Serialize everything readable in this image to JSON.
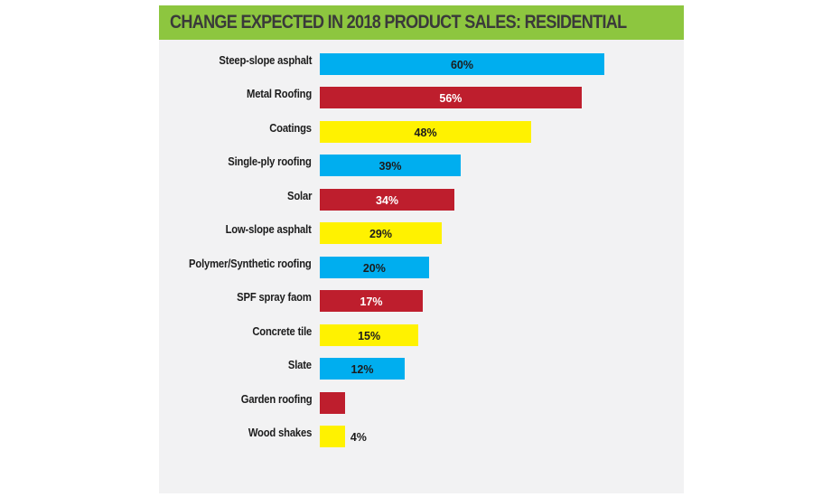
{
  "chart_data": {
    "type": "bar",
    "orientation": "horizontal",
    "title": "CHANGE EXPECTED IN 2018 PRODUCT SALES: RESIDENTIAL",
    "xlabel": "",
    "ylabel": "",
    "grid": false,
    "legend": null,
    "value_unit": "%",
    "categories": [
      "Steep-slope asphalt",
      "Metal Roofing",
      "Coatings",
      "Single-ply roofing",
      "Solar",
      "Low-slope asphalt",
      "Polymer/Synthetic roofing",
      "SPF spray faom",
      "Concrete tile",
      "Slate",
      "Garden roofing",
      "Wood shakes"
    ],
    "values": [
      60,
      56,
      48,
      39,
      34,
      29,
      20,
      17,
      15,
      12,
      null,
      4
    ],
    "value_labels": [
      "60%",
      "56%",
      "48%",
      "39%",
      "34%",
      "29%",
      "20%",
      "17%",
      "15%",
      "12%",
      "",
      "4%"
    ],
    "drawn_bar_lengths": [
      60,
      55.2,
      44.6,
      29.7,
      28.4,
      25.7,
      23,
      21.7,
      20.8,
      17.9,
      5.3,
      5.3
    ],
    "colors": [
      "#00aeef",
      "#be1e2d",
      "#fff200",
      "#00aeef",
      "#be1e2d",
      "#fff200",
      "#00aeef",
      "#be1e2d",
      "#fff200",
      "#00aeef",
      "#be1e2d",
      "#fff200"
    ],
    "label_colors": [
      "#1c1c1c",
      "#ffffff",
      "#1c1c1c",
      "#1c1c1c",
      "#ffffff",
      "#1c1c1c",
      "#1c1c1c",
      "#ffffff",
      "#1c1c1c",
      "#1c1c1c",
      "#ffffff",
      "#1c1c1c"
    ],
    "xlim": [
      0,
      60
    ]
  },
  "colors": {
    "header_bg": "#8dc63f",
    "panel_bg": "#f2f2f3",
    "title_text": "#3a3a3a"
  }
}
